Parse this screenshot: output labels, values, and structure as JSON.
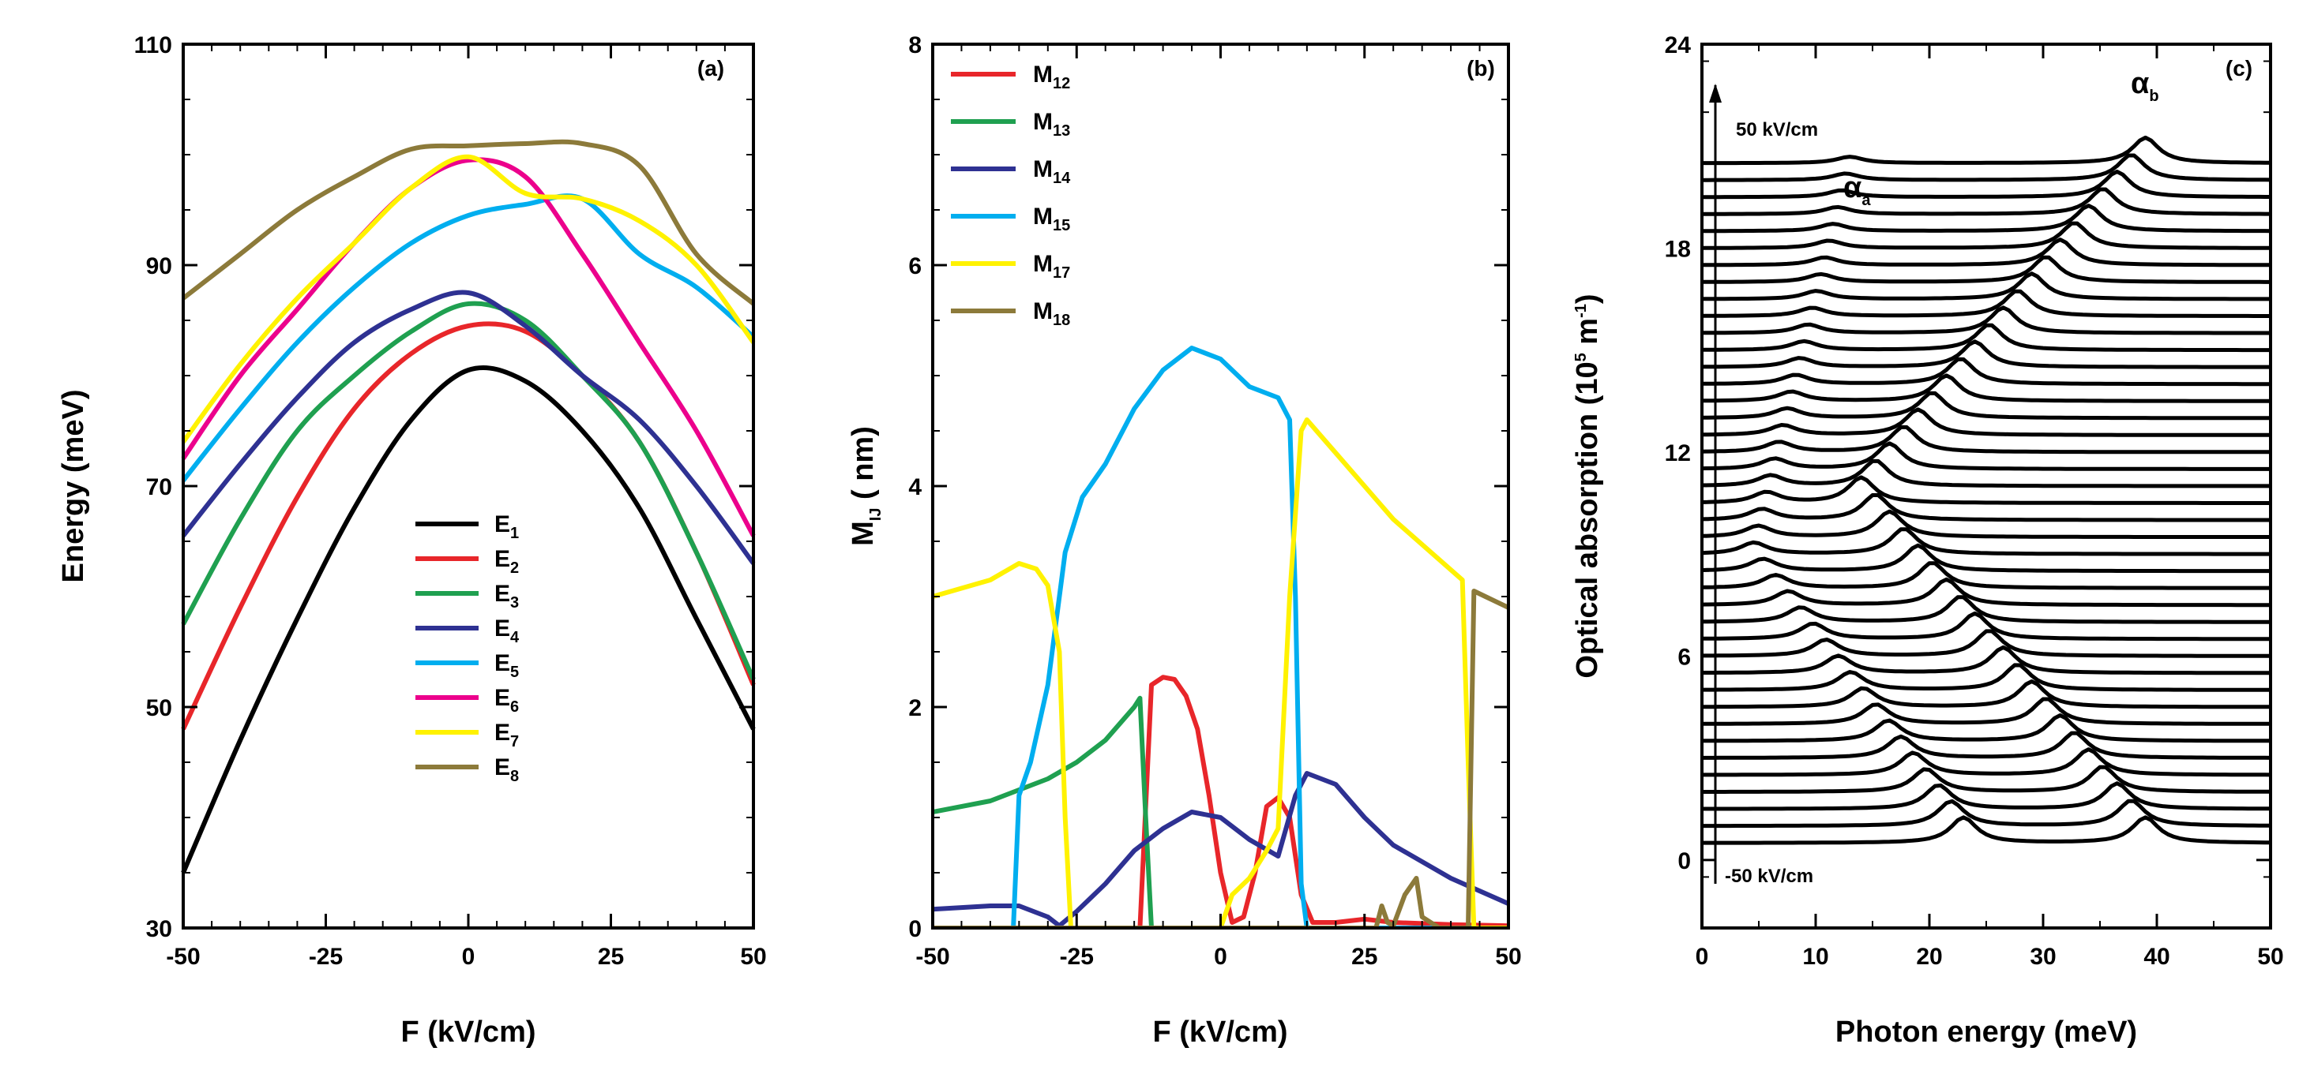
{
  "chart_data": [
    {
      "panel": "(a)",
      "type": "line",
      "xlabel": "F (kV/cm)",
      "ylabel": "Energy (meV)",
      "xlim": [
        -50,
        50
      ],
      "ylim": [
        30,
        110
      ],
      "xticks": [
        "-50",
        "-25",
        "0",
        "25",
        "50"
      ],
      "yticks": [
        "30",
        "50",
        "70",
        "90",
        "110"
      ],
      "legend_position": "lower-center",
      "series": [
        {
          "name": "E",
          "sub": "1",
          "color": "#000000",
          "x": [
            -50,
            -40,
            -30,
            -20,
            -10,
            0,
            10,
            20,
            30,
            40,
            50
          ],
          "y": [
            35,
            47,
            58,
            68,
            76,
            80.5,
            79.5,
            75,
            68,
            58,
            48
          ]
        },
        {
          "name": "E",
          "sub": "2",
          "color": "#e8262a",
          "x": [
            -50,
            -40,
            -30,
            -20,
            -10,
            0,
            10,
            20,
            30,
            40,
            50
          ],
          "y": [
            48,
            59,
            69,
            77,
            82,
            84.5,
            84,
            80,
            74,
            64,
            52
          ]
        },
        {
          "name": "E",
          "sub": "3",
          "color": "#1fa050",
          "x": [
            -50,
            -40,
            -30,
            -20,
            -10,
            0,
            10,
            20,
            30,
            40,
            50
          ],
          "y": [
            57.5,
            67,
            75,
            80,
            84,
            86.5,
            85,
            80,
            74,
            64,
            52.5
          ]
        },
        {
          "name": "E",
          "sub": "4",
          "color": "#2e3192",
          "x": [
            -50,
            -40,
            -30,
            -20,
            -10,
            0,
            10,
            20,
            30,
            40,
            50
          ],
          "y": [
            65.5,
            72,
            78,
            83,
            86,
            87.5,
            84.5,
            80,
            76,
            70,
            63
          ]
        },
        {
          "name": "E",
          "sub": "5",
          "color": "#00aeef",
          "x": [
            -50,
            -40,
            -30,
            -20,
            -10,
            0,
            10,
            20,
            30,
            40,
            50
          ],
          "y": [
            70.5,
            77,
            83,
            88,
            92,
            94.5,
            95.5,
            96,
            91,
            88,
            83.5
          ]
        },
        {
          "name": "E",
          "sub": "6",
          "color": "#ec008c",
          "x": [
            -50,
            -40,
            -30,
            -20,
            -10,
            0,
            10,
            20,
            30,
            40,
            50
          ],
          "y": [
            72.5,
            80,
            86,
            92,
            97,
            99.5,
            98,
            91,
            83,
            75,
            65.5
          ]
        },
        {
          "name": "E",
          "sub": "7",
          "color": "#fff200",
          "x": [
            -50,
            -40,
            -30,
            -20,
            -10,
            0,
            10,
            20,
            30,
            40,
            50
          ],
          "y": [
            74,
            81,
            87,
            92,
            97,
            99.8,
            96.5,
            96,
            94,
            90,
            83
          ]
        },
        {
          "name": "E",
          "sub": "8",
          "color": "#8c7a3a",
          "x": [
            -50,
            -40,
            -30,
            -20,
            -10,
            0,
            10,
            20,
            30,
            40,
            50
          ],
          "y": [
            87,
            91,
            95,
            98,
            100.5,
            100.8,
            101,
            101,
            99,
            91,
            86.5
          ]
        }
      ]
    },
    {
      "panel": "(b)",
      "type": "line",
      "xlabel": "F (kV/cm)",
      "ylabel": "M",
      "ylabel_sub": "IJ",
      "ylabel_suffix": " ( nm)",
      "xlim": [
        -50,
        50
      ],
      "ylim": [
        0,
        8
      ],
      "xticks": [
        "-50",
        "-25",
        "0",
        "25",
        "50"
      ],
      "yticks": [
        "0",
        "2",
        "4",
        "6",
        "8"
      ],
      "legend_position": "top-left",
      "series": [
        {
          "name": "M",
          "sub": "12",
          "color": "#e8262a",
          "x": [
            -50,
            -14,
            -12,
            -10,
            -8,
            -6,
            -4,
            -2,
            0,
            2,
            4,
            6,
            8,
            10,
            12,
            14,
            16,
            20,
            25,
            30,
            40,
            50
          ],
          "y": [
            0,
            0,
            2.2,
            2.27,
            2.25,
            2.1,
            1.8,
            1.2,
            0.5,
            0.05,
            0.1,
            0.5,
            1.1,
            1.18,
            1.0,
            0.3,
            0.05,
            0.05,
            0.08,
            0.05,
            0.03,
            0.02
          ]
        },
        {
          "name": "M",
          "sub": "13",
          "color": "#1fa050",
          "x": [
            -50,
            -40,
            -30,
            -25,
            -20,
            -15,
            -14,
            -13,
            -12,
            0,
            20,
            50
          ],
          "y": [
            1.05,
            1.15,
            1.35,
            1.5,
            1.7,
            2.0,
            2.08,
            1.0,
            0,
            0,
            0,
            0
          ]
        },
        {
          "name": "M",
          "sub": "14",
          "color": "#2e3192",
          "x": [
            -50,
            -40,
            -35,
            -30,
            -28,
            -25,
            -20,
            -15,
            -10,
            -5,
            0,
            5,
            10,
            13,
            15,
            20,
            25,
            30,
            40,
            50
          ],
          "y": [
            0.17,
            0.2,
            0.2,
            0.1,
            0.02,
            0.15,
            0.4,
            0.7,
            0.9,
            1.05,
            1.0,
            0.8,
            0.65,
            1.2,
            1.4,
            1.3,
            1.0,
            0.75,
            0.45,
            0.22
          ]
        },
        {
          "name": "M",
          "sub": "15",
          "color": "#00aeef",
          "x": [
            -50,
            -36,
            -35,
            -33,
            -30,
            -27,
            -24,
            -20,
            -15,
            -10,
            -5,
            0,
            5,
            10,
            12,
            13,
            14,
            15,
            20,
            50
          ],
          "y": [
            0,
            0,
            1.2,
            1.5,
            2.2,
            3.4,
            3.9,
            4.2,
            4.7,
            5.05,
            5.25,
            5.15,
            4.9,
            4.8,
            4.6,
            3.0,
            0.4,
            0,
            0,
            0
          ]
        },
        {
          "name": "M",
          "sub": "17",
          "color": "#fff200",
          "x": [
            -50,
            -40,
            -35,
            -32,
            -30,
            -28,
            -27,
            -26,
            -20,
            0,
            2,
            5,
            8,
            10,
            12,
            14,
            15,
            20,
            30,
            42,
            43,
            44,
            50
          ],
          "y": [
            3.0,
            3.15,
            3.3,
            3.25,
            3.1,
            2.5,
            1.0,
            0,
            0,
            0,
            0.3,
            0.45,
            0.7,
            0.9,
            3.0,
            4.5,
            4.6,
            4.3,
            3.7,
            3.15,
            1.5,
            0,
            0
          ]
        },
        {
          "name": "M",
          "sub": "18",
          "color": "#8c7a3a",
          "x": [
            -50,
            0,
            20,
            25,
            27,
            28,
            29,
            30,
            32,
            34,
            35,
            38,
            42,
            43,
            44,
            46,
            50
          ],
          "y": [
            0,
            0,
            0,
            0,
            0,
            0.2,
            0.05,
            0.02,
            0.3,
            0.45,
            0.1,
            0,
            0,
            0,
            3.05,
            3.0,
            2.9
          ]
        }
      ]
    },
    {
      "panel": "(c)",
      "type": "line",
      "xlabel": "Photon energy (meV)",
      "ylabel_prefix": "Optical absorption (10",
      "ylabel_sup1": "5",
      "ylabel_mid": " m",
      "ylabel_sup2": "-1",
      "ylabel_suffix": ")",
      "xlim": [
        0,
        50
      ],
      "ylim": [
        -2,
        24
      ],
      "xticks": [
        "0",
        "10",
        "20",
        "30",
        "40",
        "50"
      ],
      "yticks": [
        "0",
        "6",
        "12",
        "18",
        "24"
      ],
      "annotations": {
        "top_field": "50 kV/cm",
        "bottom_field": "-50 kV/cm",
        "peak_a": "α",
        "peak_a_sub": "a",
        "peak_b": "α",
        "peak_b_sub": "b"
      },
      "stack": {
        "count": 41,
        "offset_start": 0.5,
        "offset_step": 0.5,
        "field_start_kV_cm": -50,
        "field_step_kV_cm": 2.5,
        "peak_a_energy_bottom": 23,
        "peak_a_energy_turn": 4.5,
        "peak_a_energy_top": 13,
        "peak_b_energy_bottom": 39,
        "peak_b_energy_mid": 14,
        "peak_b_energy_top": 39,
        "peak_height": 0.75
      }
    }
  ]
}
